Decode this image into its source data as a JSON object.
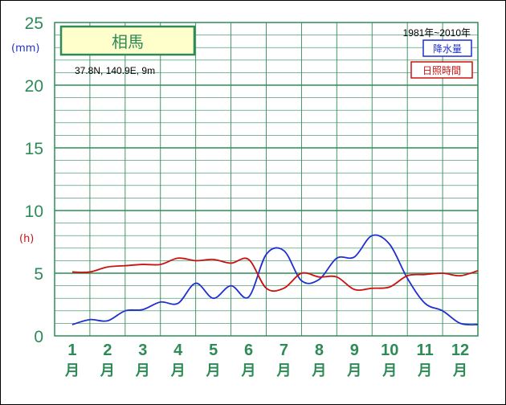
{
  "chart_data": {
    "type": "line",
    "station": "相馬",
    "coords": "37.8N,  140.9E,  9m",
    "period": "1981年~2010年",
    "units": {
      "left": "(mm)",
      "right": "(h)"
    },
    "yticks": [
      "0",
      "5",
      "10",
      "15",
      "20",
      "25"
    ],
    "ylim": [
      0,
      25
    ],
    "months": [
      "1",
      "2",
      "3",
      "4",
      "5",
      "6",
      "7",
      "8",
      "9",
      "10",
      "11",
      "12"
    ],
    "month_kanji": "月",
    "grid": true,
    "series": [
      {
        "name": "降水量",
        "color": "#1f2fd0",
        "x": [
          1.0,
          1.5,
          2.0,
          2.5,
          3.0,
          3.5,
          4.0,
          4.5,
          5.0,
          5.5,
          6.0,
          6.5,
          7.0,
          7.5,
          8.0,
          8.5,
          9.0,
          9.5,
          10.0,
          10.5,
          11.0,
          11.5,
          12.0,
          12.5
        ],
        "values": [
          0.9,
          1.3,
          1.2,
          2.0,
          2.1,
          2.7,
          2.6,
          4.2,
          3.0,
          4.0,
          3.1,
          6.5,
          6.8,
          4.4,
          4.5,
          6.2,
          6.3,
          8.0,
          7.3,
          4.6,
          2.6,
          2.0,
          1.0,
          0.9
        ]
      },
      {
        "name": "日照時間",
        "color": "#cc1111",
        "x": [
          1.0,
          1.5,
          2.0,
          2.5,
          3.0,
          3.5,
          4.0,
          4.5,
          5.0,
          5.5,
          6.0,
          6.5,
          7.0,
          7.5,
          8.0,
          8.5,
          9.0,
          9.5,
          10.0,
          10.5,
          11.0,
          11.5,
          12.0,
          12.5
        ],
        "values": [
          5.1,
          5.1,
          5.5,
          5.6,
          5.7,
          5.7,
          6.2,
          6.0,
          6.1,
          5.8,
          6.1,
          3.8,
          3.8,
          5.0,
          4.7,
          4.7,
          3.7,
          3.8,
          3.9,
          4.8,
          4.9,
          5.0,
          4.8,
          5.2
        ]
      }
    ]
  }
}
